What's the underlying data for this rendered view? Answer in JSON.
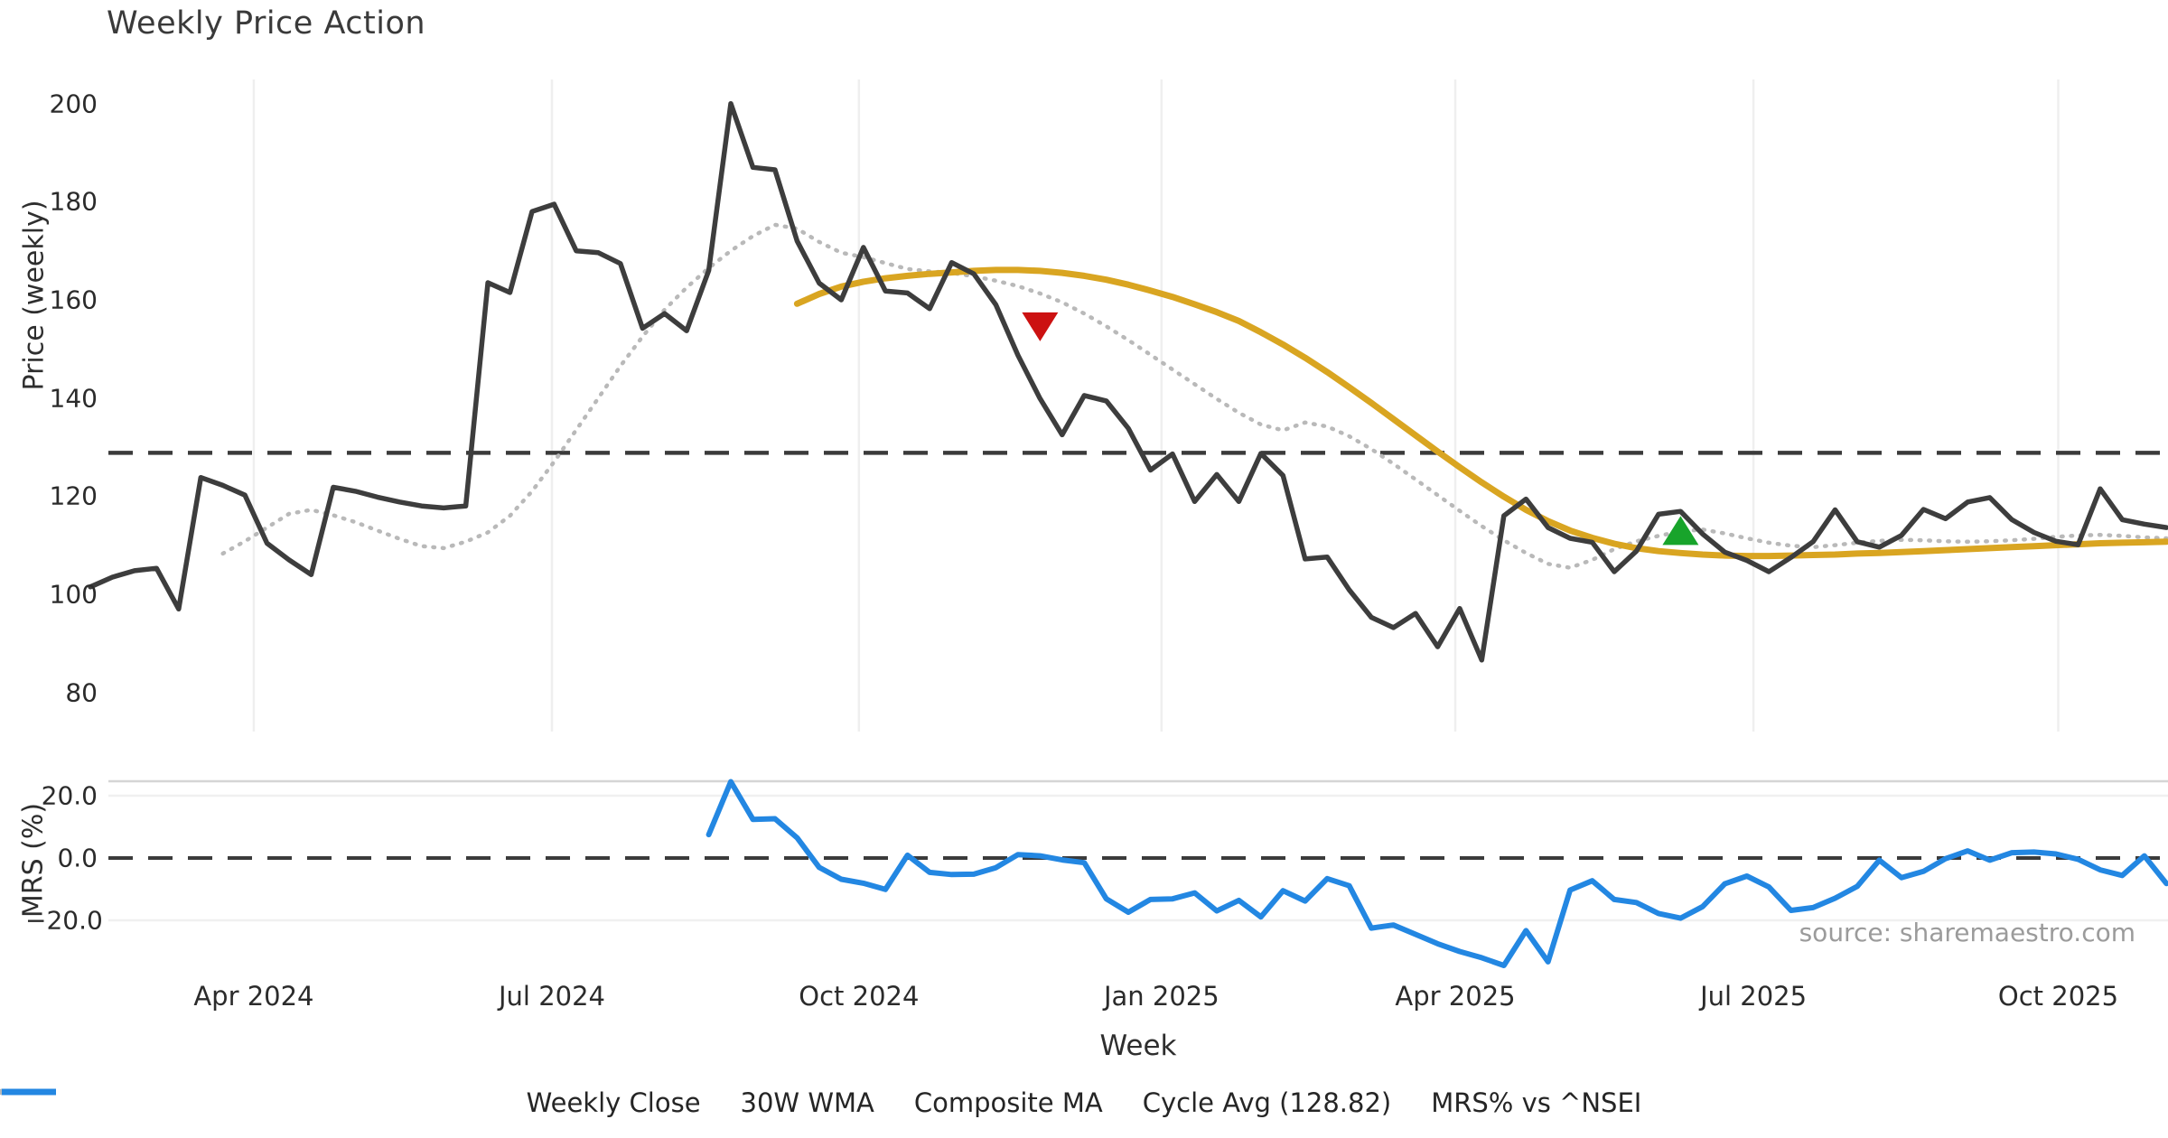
{
  "title": "Weekly Price Action",
  "source_note": "source: sharemaestro.com",
  "colors": {
    "weekly_close": "#3d3d3d",
    "wma_30w": "#d9a521",
    "composite_ma": "#b9b9b9",
    "cycle_avg": "#3b3b3b",
    "mrs_line": "#2387e2",
    "sell_marker": "#cc1111",
    "buy_marker": "#18a42b",
    "gridline": "#efefef",
    "panel_divider": "#d5d5d5",
    "mrs_gridline": "#f0f0f0",
    "tick_text": "#2b2b2b",
    "source_text": "#9b9b9b"
  },
  "price_axis": {
    "label": "Price (weekly)",
    "ticks": [
      200,
      180,
      160,
      140,
      120,
      100,
      80
    ]
  },
  "mrs_axis": {
    "label": "MRS (%)",
    "ticks": [
      {
        "label": "20.0",
        "value": 20
      },
      {
        "label": "0.0",
        "value": 0
      },
      {
        "label": "−20.0",
        "value": -20
      }
    ]
  },
  "x_axis": {
    "label": "Week",
    "ticks": [
      {
        "label": "Apr 2024",
        "week": 7.4
      },
      {
        "label": "Jul 2024",
        "week": 20.9
      },
      {
        "label": "Oct 2024",
        "week": 34.8
      },
      {
        "label": "Jan 2025",
        "week": 48.5
      },
      {
        "label": "Apr 2025",
        "week": 61.8
      },
      {
        "label": "Jul 2025",
        "week": 75.3
      },
      {
        "label": "Oct 2025",
        "week": 89.1
      }
    ]
  },
  "legend": [
    {
      "label": "Weekly Close",
      "color": "#3d3d3d",
      "pattern": "solid"
    },
    {
      "label": "30W WMA",
      "color": "#d9a521",
      "pattern": "solid"
    },
    {
      "label": "Composite MA",
      "color": "#b9b9b9",
      "pattern": "dotted"
    },
    {
      "label": "Cycle Avg (128.82)",
      "color": "#3b3b3b",
      "pattern": "dashed"
    },
    {
      "label": "MRS% vs ^NSEI",
      "color": "#2387e2",
      "pattern": "solid"
    }
  ],
  "chart_data": {
    "type": "line",
    "title": "Weekly Price Action",
    "xlabel": "Week",
    "weeks_total": 95,
    "grid": "vertical-light",
    "legend_position": "bottom-center",
    "panels": [
      {
        "ylabel": "Price (weekly)",
        "ylim": [
          76,
          208
        ],
        "yticks": [
          200,
          180,
          160,
          140,
          120,
          100,
          80
        ],
        "reference_line": {
          "name": "Cycle Avg (128.82)",
          "value": 128.82,
          "style": "dashed"
        },
        "series": [
          {
            "name": "Weekly Close",
            "start_week": 0,
            "values": [
              101.5,
              103.5,
              104.8,
              105.3,
              97,
              123.8,
              122.2,
              120.2,
              110.4,
              107,
              104,
              121.8,
              121,
              119.8,
              118.8,
              118,
              117.6,
              118,
              163.5,
              161.5,
              178,
              179.5,
              170,
              169.6,
              167.4,
              154.2,
              157.2,
              153.7,
              166,
              200,
              187,
              186.5,
              172,
              163.4,
              160,
              170.7,
              161.8,
              161.4,
              158.2,
              167.6,
              165.3,
              159,
              148.7,
              139.9,
              132.5,
              140.5,
              139.4,
              133.8,
              125.3,
              128.6,
              118.9,
              124.4,
              118.9,
              128.7,
              124.2,
              107.2,
              107.6,
              100.9,
              95.3,
              93.2,
              96.1,
              89.3,
              97.1,
              86.6,
              116,
              119.4,
              113.6,
              111.4,
              110.6,
              104.6,
              108.8,
              116.3,
              116.9,
              112.3,
              108.6,
              106.9,
              104.6,
              107.5,
              110.7,
              117.2,
              110.7,
              109.6,
              112,
              117.3,
              115.4,
              118.8,
              119.7,
              115.2,
              112.6,
              110.8,
              110.1,
              121.5,
              115.2,
              114.3,
              113.6
            ]
          },
          {
            "name": "30W WMA",
            "start_week": 32,
            "values": [
              159.2,
              161.2,
              162.7,
              163.7,
              164.4,
              164.9,
              165.3,
              165.6,
              165.9,
              166.1,
              166.1,
              165.9,
              165.5,
              164.9,
              164.1,
              163.1,
              161.9,
              160.6,
              159.1,
              157.5,
              155.7,
              153.4,
              150.9,
              148.2,
              145.3,
              142.2,
              139,
              135.7,
              132.4,
              129.1,
              125.9,
              122.8,
              119.9,
              117.2,
              114.9,
              113,
              111.5,
              110.3,
              109.4,
              108.8,
              108.4,
              108.1,
              107.9,
              107.8,
              107.8,
              107.9,
              108,
              108.1,
              108.3,
              108.4,
              108.6,
              108.8,
              109,
              109.2,
              109.4,
              109.6,
              109.8,
              110,
              110.2,
              110.4,
              110.5,
              110.6,
              110.7
            ]
          },
          {
            "name": "Composite MA",
            "start_week": 6,
            "values": [
              108.3,
              110.8,
              113.6,
              116.4,
              117.2,
              116.1,
              114.7,
              113,
              111.3,
              109.8,
              109.4,
              110.7,
              112.6,
              116,
              121,
              127,
              133.5,
              140,
              146.5,
              152.5,
              158,
              162.5,
              166.5,
              170,
              173,
              175.3,
              174.5,
              171.8,
              169.6,
              168.7,
              167.5,
              166.3,
              165.8,
              165.5,
              164.8,
              163.9,
              162.8,
              161.3,
              159.5,
              157.2,
              154.6,
              151.8,
              148.8,
              145.8,
              142.8,
              139.8,
              137,
              134.6,
              133.4,
              135,
              134.2,
              132.2,
              129.6,
              126.6,
              123.4,
              120.2,
              117,
              113.9,
              111,
              108.4,
              106.2,
              105.4,
              107,
              109.2,
              110.8,
              111.9,
              112.8,
              113.2,
              112.4,
              111.4,
              110.5,
              109.9,
              109.6,
              110,
              110.5,
              110.9,
              111.1,
              111,
              110.8,
              110.7,
              110.8,
              111,
              111.3,
              111.7,
              112,
              112.1,
              111.9,
              111.6,
              111.4
            ]
          }
        ],
        "markers": [
          {
            "name": "sell-signal",
            "shape": "triangle-down",
            "color": "#cc1111",
            "week": 43,
            "value": 154.5
          },
          {
            "name": "buy-signal",
            "shape": "triangle-up",
            "color": "#18a42b",
            "week": 72,
            "value": 113
          }
        ]
      },
      {
        "ylabel": "MRS (%)",
        "ylim": [
          -36,
          26
        ],
        "yticks": [
          20,
          0,
          -20
        ],
        "reference_line": {
          "name": "Zero line",
          "value": 0,
          "style": "dashed"
        },
        "series": [
          {
            "name": "MRS% vs ^NSEI",
            "start_week": 28,
            "values": [
              7.5,
              24.5,
              12.4,
              12.6,
              6.5,
              -3,
              -6.8,
              -8.1,
              -10.1,
              0.9,
              -4.6,
              -5.3,
              -5.2,
              -3.1,
              1.1,
              0.7,
              -0.6,
              -1.5,
              -13.1,
              -17.4,
              -13.3,
              -13.1,
              -11.2,
              -17,
              -13.6,
              -18.9,
              -10.5,
              -13.8,
              -6.6,
              -8.9,
              -22.5,
              -21.5,
              -24.5,
              -27.5,
              -30,
              -32,
              -34.5,
              -23.3,
              -33.3,
              -10.3,
              -7.3,
              -13.3,
              -14.3,
              -17.8,
              -19.3,
              -15.6,
              -8.3,
              -5.8,
              -9.3,
              -16.8,
              -15.9,
              -12.9,
              -9.1,
              -0.7,
              -6.3,
              -4.3,
              -0.2,
              2.3,
              -0.7,
              1.7,
              1.9,
              1.3,
              -0.4,
              -3.8,
              -5.6,
              0.7,
              -8.2
            ]
          }
        ]
      }
    ]
  }
}
